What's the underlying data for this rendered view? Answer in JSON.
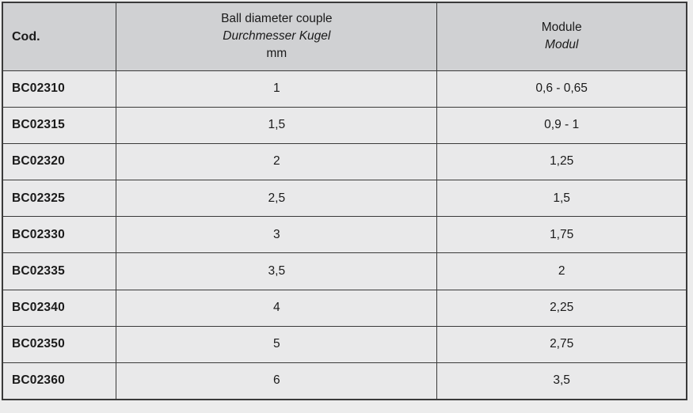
{
  "table": {
    "headers": {
      "col1": "Cod.",
      "col2_line1": "Ball diameter couple",
      "col2_line2": "Durchmesser Kugel",
      "col2_line3": "mm",
      "col3_line1": "Module",
      "col3_line2": "Modul"
    },
    "rows": [
      {
        "code": "BC02310",
        "ball_diameter_mm": "1",
        "module": "0,6 - 0,65"
      },
      {
        "code": "BC02315",
        "ball_diameter_mm": "1,5",
        "module": "0,9 - 1"
      },
      {
        "code": "BC02320",
        "ball_diameter_mm": "2",
        "module": "1,25"
      },
      {
        "code": "BC02325",
        "ball_diameter_mm": "2,5",
        "module": "1,5"
      },
      {
        "code": "BC02330",
        "ball_diameter_mm": "3",
        "module": "1,75"
      },
      {
        "code": "BC02335",
        "ball_diameter_mm": "3,5",
        "module": "2"
      },
      {
        "code": "BC02340",
        "ball_diameter_mm": "4",
        "module": "2,25"
      },
      {
        "code": "BC02350",
        "ball_diameter_mm": "5",
        "module": "2,75"
      },
      {
        "code": "BC02360",
        "ball_diameter_mm": "6",
        "module": "3,5"
      }
    ]
  },
  "colors": {
    "header_bg": "#d0d1d3",
    "row_bg": "#e9e9ea",
    "border": "#3a3a3a",
    "text": "#1a1a1a"
  }
}
